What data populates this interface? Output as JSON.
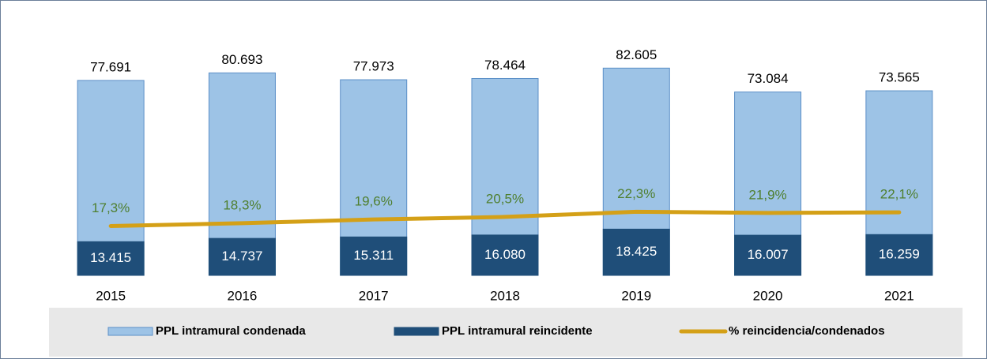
{
  "chart_data": {
    "type": "bar",
    "categories": [
      "2015",
      "2016",
      "2017",
      "2018",
      "2019",
      "2020",
      "2021"
    ],
    "series": [
      {
        "name": "PPL intramural condenada",
        "type": "bar",
        "color": "#9dc3e6",
        "values": [
          77691,
          80693,
          77973,
          78464,
          82605,
          73084,
          73565
        ],
        "value_labels": [
          "77.691",
          "80.693",
          "77.973",
          "78.464",
          "82.605",
          "73.084",
          "73.565"
        ]
      },
      {
        "name": "PPL intramural reincidente",
        "type": "bar",
        "color": "#1f4e79",
        "values": [
          13415,
          14737,
          15311,
          16080,
          18425,
          16007,
          16259
        ],
        "value_labels": [
          "13.415",
          "14.737",
          "15.311",
          "16.080",
          "18.425",
          "16.007",
          "16.259"
        ]
      },
      {
        "name": "% reincidencia/condenados",
        "type": "line",
        "axis": "y2",
        "color": "#d4a017",
        "values": [
          17.3,
          18.3,
          19.6,
          20.5,
          22.3,
          21.9,
          22.1
        ],
        "value_labels": [
          "17,3%",
          "18,3%",
          "19,6%",
          "20,5%",
          "22,3%",
          "21,9%",
          "22,1%"
        ]
      }
    ],
    "ylim": [
      0,
      100000
    ],
    "y2lim": [
      0,
      88
    ],
    "overlap": true,
    "legend": "bottom"
  }
}
